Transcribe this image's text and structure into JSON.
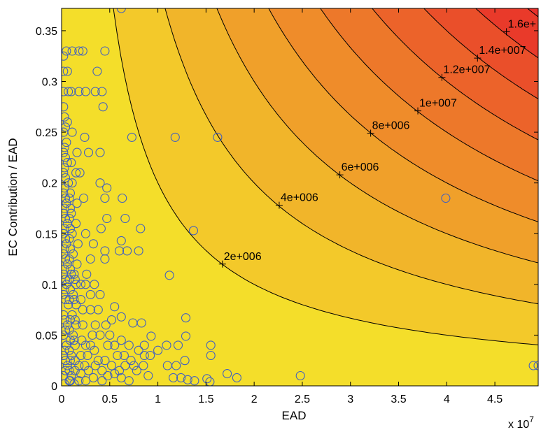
{
  "chart_data": {
    "type": "scatter",
    "title": "",
    "xlabel": "EAD",
    "ylabel": "EC Contribution / EAD",
    "x_multiplier_label": "x 10",
    "x_multiplier_exponent": "7",
    "xlim": [
      0,
      4.95
    ],
    "ylim": [
      0,
      0.372
    ],
    "x_ticks": [
      0,
      0.5,
      1,
      1.5,
      2,
      2.5,
      3,
      3.5,
      4,
      4.5
    ],
    "x_tick_labels": [
      "0",
      "0.5",
      "1",
      "1.5",
      "2",
      "2.5",
      "3",
      "3.5",
      "4",
      "4.5"
    ],
    "y_ticks": [
      0,
      0.05,
      0.1,
      0.15,
      0.2,
      0.25,
      0.3,
      0.35
    ],
    "y_tick_labels": [
      "0",
      "0.05",
      "0.1",
      "0.15",
      "0.2",
      "0.25",
      "0.3",
      "0.35"
    ],
    "grid": false,
    "legend": "none",
    "colors": {
      "low": "#f5e82a",
      "high": "#e8302a",
      "marker": "#4060c0",
      "contour_line": "#000000"
    },
    "contours": [
      {
        "level": 2000000,
        "label": "2e+006",
        "label_at": [
          1.67,
          0.12
        ]
      },
      {
        "level": 4000000,
        "label": "4e+006",
        "label_at": [
          2.26,
          0.178
        ]
      },
      {
        "level": 6000000,
        "label": "6e+006",
        "label_at": [
          2.89,
          0.208
        ]
      },
      {
        "level": 8000000,
        "label": "8e+006",
        "label_at": [
          3.21,
          0.249
        ]
      },
      {
        "level": 10000000,
        "label": "1e+007",
        "label_at": [
          3.7,
          0.271
        ]
      },
      {
        "level": 12000000,
        "label": "1.2e+007",
        "label_at": [
          3.95,
          0.304
        ]
      },
      {
        "level": 14000000,
        "label": "1.4e+007",
        "label_at": [
          4.32,
          0.323
        ]
      },
      {
        "level": 16000000,
        "label": "1.6e+",
        "label_at": [
          4.62,
          0.349
        ]
      },
      {
        "level": 18000000,
        "label": "",
        "label_at": null
      }
    ],
    "points": [
      [
        0.62,
        0.372
      ],
      [
        1.62,
        0.245
      ],
      [
        1.18,
        0.245
      ],
      [
        3.99,
        0.185
      ],
      [
        0.73,
        0.245
      ],
      [
        1.37,
        0.153
      ],
      [
        1.12,
        0.109
      ],
      [
        0.45,
        0.33
      ],
      [
        0.37,
        0.31
      ],
      [
        0.42,
        0.29
      ],
      [
        0.35,
        0.29
      ],
      [
        0.43,
        0.275
      ],
      [
        0.4,
        0.2
      ],
      [
        0.47,
        0.195
      ],
      [
        0.45,
        0.185
      ],
      [
        0.24,
        0.245
      ],
      [
        0.28,
        0.23
      ],
      [
        0.4,
        0.23
      ],
      [
        0.25,
        0.15
      ],
      [
        0.41,
        0.155
      ],
      [
        0.47,
        0.165
      ],
      [
        0.63,
        0.185
      ],
      [
        0.33,
        0.14
      ],
      [
        0.66,
        0.165
      ],
      [
        0.62,
        0.143
      ],
      [
        0.82,
        0.155
      ],
      [
        0.45,
        0.133
      ],
      [
        0.6,
        0.133
      ],
      [
        0.68,
        0.133
      ],
      [
        0.8,
        0.133
      ],
      [
        0.45,
        0.125
      ],
      [
        0.3,
        0.125
      ],
      [
        0.18,
        0.33
      ],
      [
        0.22,
        0.33
      ],
      [
        0.25,
        0.29
      ],
      [
        0.18,
        0.29
      ],
      [
        0.23,
        0.185
      ],
      [
        0.19,
        0.21
      ],
      [
        1.29,
        0.067
      ],
      [
        1.29,
        0.049
      ],
      [
        1.21,
        0.04
      ],
      [
        1.09,
        0.04
      ],
      [
        0.93,
        0.049
      ],
      [
        0.83,
        0.062
      ],
      [
        0.74,
        0.062
      ],
      [
        0.55,
        0.078
      ],
      [
        0.62,
        0.068
      ],
      [
        1.19,
        0.02
      ],
      [
        1.1,
        0.02
      ],
      [
        1.28,
        0.025
      ],
      [
        1.16,
        0.008
      ],
      [
        1.24,
        0.008
      ],
      [
        1.31,
        0.006
      ],
      [
        1.55,
        0.04
      ],
      [
        1.55,
        0.03
      ],
      [
        1.51,
        0.007
      ],
      [
        1.54,
        0.004
      ],
      [
        1.72,
        0.012
      ],
      [
        1.82,
        0.008
      ],
      [
        2.48,
        0.01
      ],
      [
        4.9,
        0.02
      ],
      [
        4.95,
        0.02
      ],
      [
        1.38,
        0.005
      ],
      [
        1.0,
        0.035
      ],
      [
        0.86,
        0.04
      ],
      [
        0.86,
        0.03
      ],
      [
        0.8,
        0.035
      ],
      [
        0.9,
        0.01
      ],
      [
        0.75,
        0.02
      ],
      [
        0.66,
        0.02
      ],
      [
        0.58,
        0.03
      ],
      [
        0.48,
        0.04
      ],
      [
        0.4,
        0.05
      ],
      [
        0.35,
        0.06
      ],
      [
        0.5,
        0.05
      ],
      [
        0.3,
        0.075
      ],
      [
        0.22,
        0.075
      ],
      [
        0.15,
        0.08
      ],
      [
        0.12,
        0.09
      ],
      [
        0.15,
        0.1
      ],
      [
        0.2,
        0.1
      ],
      [
        0.25,
        0.1
      ],
      [
        0.3,
        0.09
      ],
      [
        0.32,
        0.05
      ],
      [
        0.25,
        0.04
      ],
      [
        0.2,
        0.03
      ],
      [
        0.18,
        0.02
      ],
      [
        0.14,
        0.015
      ],
      [
        0.1,
        0.01
      ],
      [
        0.28,
        0.015
      ],
      [
        0.35,
        0.02
      ],
      [
        0.42,
        0.015
      ],
      [
        0.48,
        0.01
      ],
      [
        0.55,
        0.012
      ],
      [
        0.62,
        0.008
      ],
      [
        0.7,
        0.005
      ],
      [
        0.42,
        0.005
      ],
      [
        0.33,
        0.008
      ],
      [
        0.25,
        0.005
      ],
      [
        0.18,
        0.005
      ],
      [
        0.08,
        0.005
      ],
      [
        0.06,
        0.02
      ],
      [
        0.05,
        0.04
      ],
      [
        0.06,
        0.06
      ],
      [
        0.07,
        0.08
      ],
      [
        0.05,
        0.1
      ],
      [
        0.06,
        0.12
      ],
      [
        0.05,
        0.14
      ],
      [
        0.06,
        0.16
      ],
      [
        0.05,
        0.18
      ],
      [
        0.07,
        0.2
      ],
      [
        0.06,
        0.22
      ],
      [
        0.05,
        0.24
      ],
      [
        0.06,
        0.26
      ],
      [
        0.07,
        0.29
      ],
      [
        0.06,
        0.31
      ],
      [
        0.05,
        0.33
      ],
      [
        0.11,
        0.33
      ],
      [
        0.1,
        0.29
      ],
      [
        0.11,
        0.25
      ],
      [
        0.1,
        0.22
      ],
      [
        0.11,
        0.2
      ],
      [
        0.1,
        0.17
      ],
      [
        0.11,
        0.15
      ],
      [
        0.12,
        0.13
      ],
      [
        0.1,
        0.11
      ],
      [
        0.11,
        0.07
      ],
      [
        0.12,
        0.05
      ],
      [
        0.1,
        0.03
      ],
      [
        0.14,
        0.04
      ],
      [
        0.15,
        0.06
      ],
      [
        0.16,
        0.12
      ],
      [
        0.17,
        0.14
      ],
      [
        0.15,
        0.16
      ],
      [
        0.16,
        0.18
      ],
      [
        0.15,
        0.21
      ],
      [
        0.16,
        0.23
      ],
      [
        0.02,
        0.01
      ],
      [
        0.02,
        0.03
      ],
      [
        0.02,
        0.05
      ],
      [
        0.02,
        0.07
      ],
      [
        0.02,
        0.09
      ],
      [
        0.02,
        0.11
      ],
      [
        0.02,
        0.13
      ],
      [
        0.02,
        0.15
      ],
      [
        0.02,
        0.17
      ],
      [
        0.02,
        0.19
      ],
      [
        0.02,
        0.21
      ],
      [
        0.02,
        0.23
      ],
      [
        0.02,
        0.25
      ],
      [
        0.02,
        0.275
      ],
      [
        0.02,
        0.29
      ],
      [
        0.02,
        0.31
      ],
      [
        0.02,
        0.325
      ],
      [
        0.03,
        0.002
      ],
      [
        0.04,
        0.015
      ],
      [
        0.04,
        0.025
      ],
      [
        0.03,
        0.035
      ],
      [
        0.04,
        0.055
      ],
      [
        0.03,
        0.065
      ],
      [
        0.04,
        0.085
      ],
      [
        0.03,
        0.095
      ],
      [
        0.04,
        0.105
      ],
      [
        0.03,
        0.115
      ],
      [
        0.04,
        0.125
      ],
      [
        0.03,
        0.135
      ],
      [
        0.04,
        0.145
      ],
      [
        0.03,
        0.155
      ],
      [
        0.04,
        0.165
      ],
      [
        0.03,
        0.175
      ],
      [
        0.04,
        0.185
      ],
      [
        0.03,
        0.195
      ],
      [
        0.04,
        0.205
      ],
      [
        0.03,
        0.215
      ],
      [
        0.04,
        0.225
      ],
      [
        0.03,
        0.235
      ],
      [
        0.04,
        0.255
      ],
      [
        0.03,
        0.265
      ],
      [
        0.09,
        0.005
      ],
      [
        0.08,
        0.015
      ],
      [
        0.09,
        0.025
      ],
      [
        0.08,
        0.035
      ],
      [
        0.09,
        0.045
      ],
      [
        0.08,
        0.055
      ],
      [
        0.09,
        0.065
      ],
      [
        0.08,
        0.085
      ],
      [
        0.09,
        0.095
      ],
      [
        0.08,
        0.105
      ],
      [
        0.09,
        0.115
      ],
      [
        0.08,
        0.125
      ],
      [
        0.09,
        0.135
      ],
      [
        0.08,
        0.145
      ],
      [
        0.09,
        0.155
      ],
      [
        0.08,
        0.165
      ],
      [
        0.09,
        0.175
      ],
      [
        0.08,
        0.185
      ],
      [
        0.09,
        0.19
      ],
      [
        0.13,
        0.002
      ],
      [
        0.14,
        0.025
      ],
      [
        0.13,
        0.045
      ],
      [
        0.14,
        0.065
      ],
      [
        0.13,
        0.085
      ],
      [
        0.14,
        0.105
      ],
      [
        0.13,
        0.11
      ],
      [
        0.2,
        0.012
      ],
      [
        0.21,
        0.045
      ],
      [
        0.22,
        0.06
      ],
      [
        0.2,
        0.085
      ],
      [
        0.24,
        0.02
      ],
      [
        0.27,
        0.03
      ],
      [
        0.3,
        0.04
      ],
      [
        0.34,
        0.035
      ],
      [
        0.38,
        0.025
      ],
      [
        0.45,
        0.025
      ],
      [
        0.52,
        0.02
      ],
      [
        0.6,
        0.015
      ],
      [
        0.65,
        0.03
      ],
      [
        0.72,
        0.025
      ],
      [
        0.78,
        0.015
      ],
      [
        0.85,
        0.02
      ],
      [
        0.92,
        0.03
      ],
      [
        0.55,
        0.04
      ],
      [
        0.62,
        0.045
      ],
      [
        0.7,
        0.04
      ],
      [
        0.46,
        0.06
      ],
      [
        0.52,
        0.065
      ],
      [
        0.38,
        0.075
      ],
      [
        0.26,
        0.11
      ],
      [
        0.34,
        0.1
      ],
      [
        0.4,
        0.09
      ]
    ]
  }
}
